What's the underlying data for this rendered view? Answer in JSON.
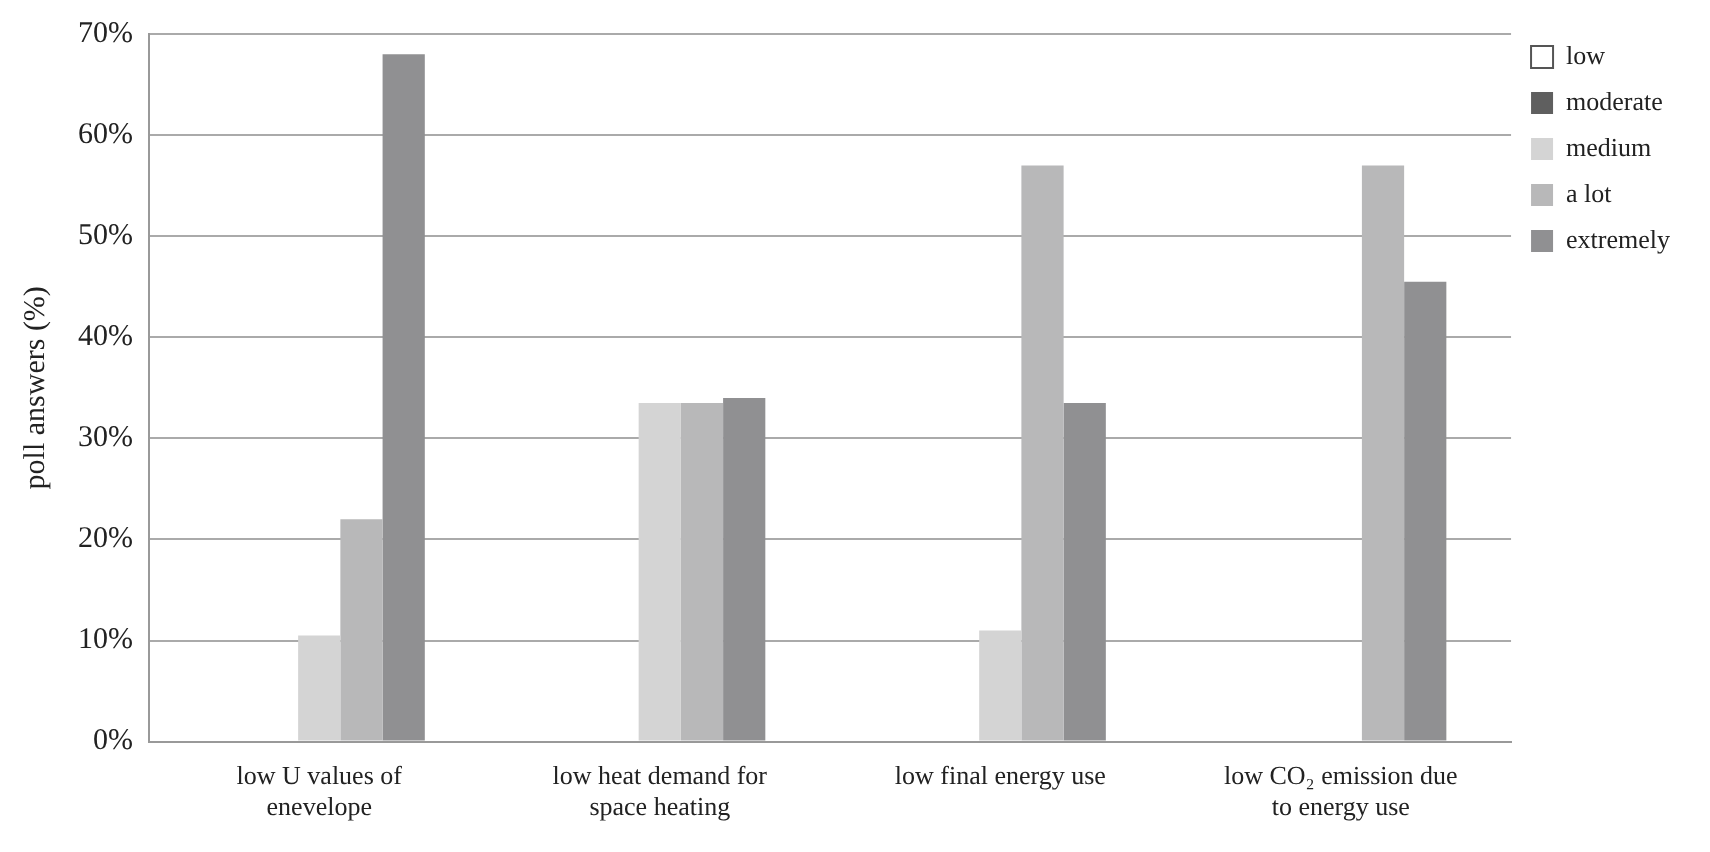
{
  "chart_data": {
    "type": "bar",
    "ylabel": "poll answers (%)",
    "categories": [
      "low U values of enevelope",
      "low heat demand for space heating",
      "low final energy use",
      "low CO₂ emission due to energy use"
    ],
    "series": [
      {
        "name": "low",
        "color": "#ffffff",
        "values": [
          0,
          0,
          0,
          0
        ]
      },
      {
        "name": "moderate",
        "color": "#5f5f5f",
        "values": [
          0,
          0,
          0,
          0
        ]
      },
      {
        "name": "medium",
        "color": "#d4d4d4",
        "values": [
          10.5,
          33.5,
          11,
          0
        ]
      },
      {
        "name": "a lot",
        "color": "#b8b8b9",
        "values": [
          22,
          33.5,
          57,
          57
        ]
      },
      {
        "name": "extremely",
        "color": "#909092",
        "values": [
          68,
          34,
          33.5,
          45.5
        ]
      }
    ],
    "ylim": [
      0,
      70
    ],
    "yticks": [
      {
        "value": 0,
        "label": "0%"
      },
      {
        "value": 10,
        "label": "10%"
      },
      {
        "value": 20,
        "label": "20%"
      },
      {
        "value": 30,
        "label": "30%"
      },
      {
        "value": 40,
        "label": "40%"
      },
      {
        "value": 50,
        "label": "50%"
      },
      {
        "value": 60,
        "label": "60%"
      },
      {
        "value": 70,
        "label": "70%"
      }
    ],
    "grid": "y",
    "legend": "right"
  }
}
